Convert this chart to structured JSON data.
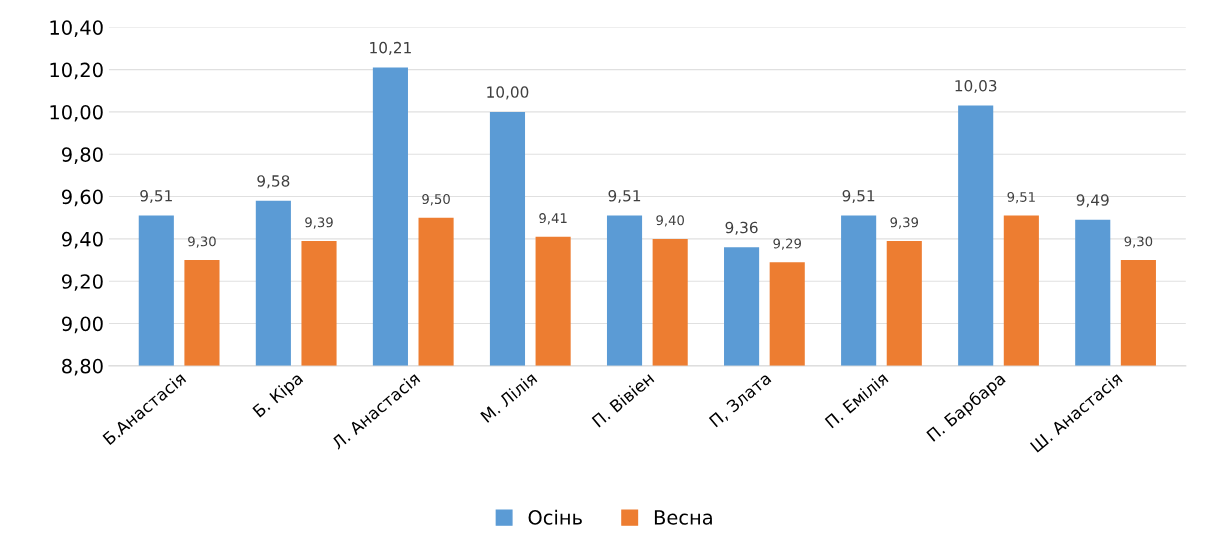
{
  "chart_data": {
    "type": "bar",
    "categories": [
      "Б.Анастасія",
      "Б. Кіра",
      "Л. Анастасія",
      "М. Лілія",
      "П. Вівіен",
      "П, Злата",
      "П. Емілія",
      "П. Барбара",
      "Ш. Анастасія"
    ],
    "series": [
      {
        "name": "Осінь",
        "color": "#5b9bd5",
        "values": [
          9.51,
          9.58,
          10.21,
          10.0,
          9.51,
          9.36,
          9.51,
          10.03,
          9.49
        ],
        "value_labels": [
          "9,51",
          "9,58",
          "10,21",
          "10,00",
          "9,51",
          "9,36",
          "9,51",
          "10,03",
          "9,49"
        ]
      },
      {
        "name": "Весна",
        "color": "#ed7d31",
        "values": [
          9.3,
          9.39,
          9.5,
          9.41,
          9.4,
          9.29,
          9.39,
          9.51,
          9.3
        ],
        "value_labels": [
          "9,30",
          "9,39",
          "9,50",
          "9,41",
          "9,40",
          "9,29",
          "9,39",
          "9,51",
          "9,30"
        ]
      }
    ],
    "ylim": [
      8.8,
      10.4
    ],
    "yticks": [
      {
        "value": 8.8,
        "label": "8,80"
      },
      {
        "value": 9.0,
        "label": "9,00"
      },
      {
        "value": 9.2,
        "label": "9,20"
      },
      {
        "value": 9.4,
        "label": "9,40"
      },
      {
        "value": 9.6,
        "label": "9,60"
      },
      {
        "value": 9.8,
        "label": "9,80"
      },
      {
        "value": 10.0,
        "label": "10,00"
      },
      {
        "value": 10.2,
        "label": "10,20"
      },
      {
        "value": 10.4,
        "label": "10,40"
      }
    ],
    "grid": "y",
    "legend": "bottom"
  }
}
